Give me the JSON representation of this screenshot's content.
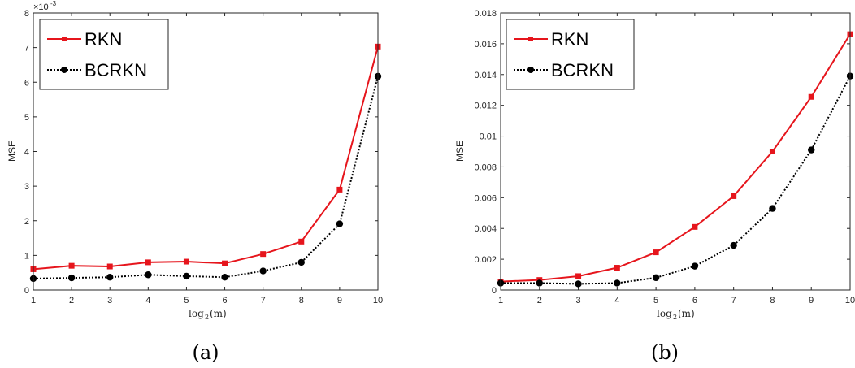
{
  "colors": {
    "rkn": "#e6151c",
    "bcrkn": "#000000",
    "axis": "#262626"
  },
  "chart_data": [
    {
      "type": "line",
      "caption": "(a)",
      "xlabel": "log2(m)",
      "xlabel_parts": {
        "base": "log",
        "sub": "2",
        "arg": "(m)"
      },
      "ylabel": "MSE",
      "exponent_label": "×10",
      "exponent_power": "-3",
      "x": [
        1,
        2,
        3,
        4,
        5,
        6,
        7,
        8,
        9,
        10
      ],
      "xlim": [
        1,
        10
      ],
      "ylim": [
        0,
        0.008
      ],
      "xticks": [
        "1",
        "2",
        "3",
        "4",
        "5",
        "6",
        "7",
        "8",
        "9",
        "10"
      ],
      "yticks": [
        0,
        0.001,
        0.002,
        0.003,
        0.004,
        0.005,
        0.006,
        0.007,
        0.008
      ],
      "ytick_labels": [
        "0",
        "1",
        "2",
        "3",
        "4",
        "5",
        "6",
        "7",
        "8"
      ],
      "legend": "top-left",
      "grid": false,
      "series": [
        {
          "name": "RKN",
          "marker": "square",
          "style": "solid",
          "values": [
            0.0006,
            0.0007,
            0.00068,
            0.0008,
            0.00082,
            0.00077,
            0.00104,
            0.0014,
            0.0029,
            0.00703
          ]
        },
        {
          "name": "BCRKN",
          "marker": "circle",
          "style": "dotted",
          "values": [
            0.00033,
            0.00035,
            0.00037,
            0.00044,
            0.0004,
            0.00037,
            0.00055,
            0.0008,
            0.00191,
            0.00617
          ]
        }
      ]
    },
    {
      "type": "line",
      "caption": "(b)",
      "xlabel": "log2(m)",
      "xlabel_parts": {
        "base": "log",
        "sub": "2",
        "arg": "(m)"
      },
      "ylabel": "MSE",
      "x": [
        1,
        2,
        3,
        4,
        5,
        6,
        7,
        8,
        9,
        10
      ],
      "xlim": [
        1,
        10
      ],
      "ylim": [
        0,
        0.018
      ],
      "xticks": [
        "1",
        "2",
        "3",
        "4",
        "5",
        "6",
        "7",
        "8",
        "9",
        "10"
      ],
      "yticks": [
        0,
        0.002,
        0.004,
        0.006,
        0.008,
        0.01,
        0.012,
        0.014,
        0.016,
        0.018
      ],
      "ytick_labels": [
        "0",
        "0.002",
        "0.004",
        "0.006",
        "0.008",
        "0.01",
        "0.012",
        "0.014",
        "0.016",
        "0.018"
      ],
      "legend": "top-left",
      "grid": false,
      "series": [
        {
          "name": "RKN",
          "marker": "square",
          "style": "solid",
          "values": [
            0.00055,
            0.00065,
            0.0009,
            0.00145,
            0.00245,
            0.0041,
            0.0061,
            0.009,
            0.01255,
            0.01662
          ]
        },
        {
          "name": "BCRKN",
          "marker": "circle",
          "style": "dotted",
          "values": [
            0.00045,
            0.00045,
            0.0004,
            0.00045,
            0.0008,
            0.00155,
            0.0029,
            0.0053,
            0.0091,
            0.0139
          ]
        }
      ]
    }
  ]
}
